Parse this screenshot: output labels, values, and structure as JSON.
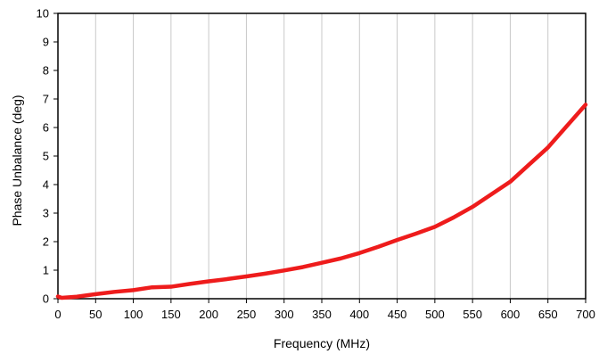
{
  "chart_data": {
    "type": "line",
    "title": "",
    "xlabel": "Frequency (MHz)",
    "ylabel": "Phase Unbalance (deg)",
    "xlim": [
      0,
      700
    ],
    "ylim": [
      0,
      10
    ],
    "xticks": [
      0,
      50,
      100,
      150,
      200,
      250,
      300,
      350,
      400,
      450,
      500,
      550,
      600,
      650,
      700
    ],
    "yticks": [
      0,
      1,
      2,
      3,
      4,
      5,
      6,
      7,
      8,
      9,
      10
    ],
    "xtick_labels": [
      "0",
      "50",
      "100",
      "150",
      "200",
      "250",
      "300",
      "350",
      "400",
      "450",
      "500",
      "550",
      "600",
      "650",
      "700"
    ],
    "ytick_labels": [
      "0",
      "1",
      "2",
      "3",
      "4",
      "5",
      "6",
      "7",
      "8",
      "9",
      "10"
    ],
    "grid": {
      "x": true,
      "y": false
    },
    "legend": "none",
    "series": [
      {
        "color": "#ee1c1c",
        "x": [
          0,
          5,
          25,
          50,
          75,
          100,
          125,
          150,
          175,
          200,
          225,
          250,
          275,
          300,
          325,
          350,
          375,
          400,
          425,
          450,
          475,
          500,
          525,
          550,
          575,
          600,
          625,
          650,
          675,
          700
        ],
        "y": [
          0.08,
          0.03,
          0.07,
          0.16,
          0.24,
          0.3,
          0.4,
          0.42,
          0.52,
          0.61,
          0.69,
          0.78,
          0.88,
          0.99,
          1.11,
          1.26,
          1.41,
          1.6,
          1.82,
          2.06,
          2.28,
          2.52,
          2.85,
          3.22,
          3.66,
          4.1,
          4.7,
          5.3,
          6.05,
          6.8
        ]
      }
    ]
  }
}
